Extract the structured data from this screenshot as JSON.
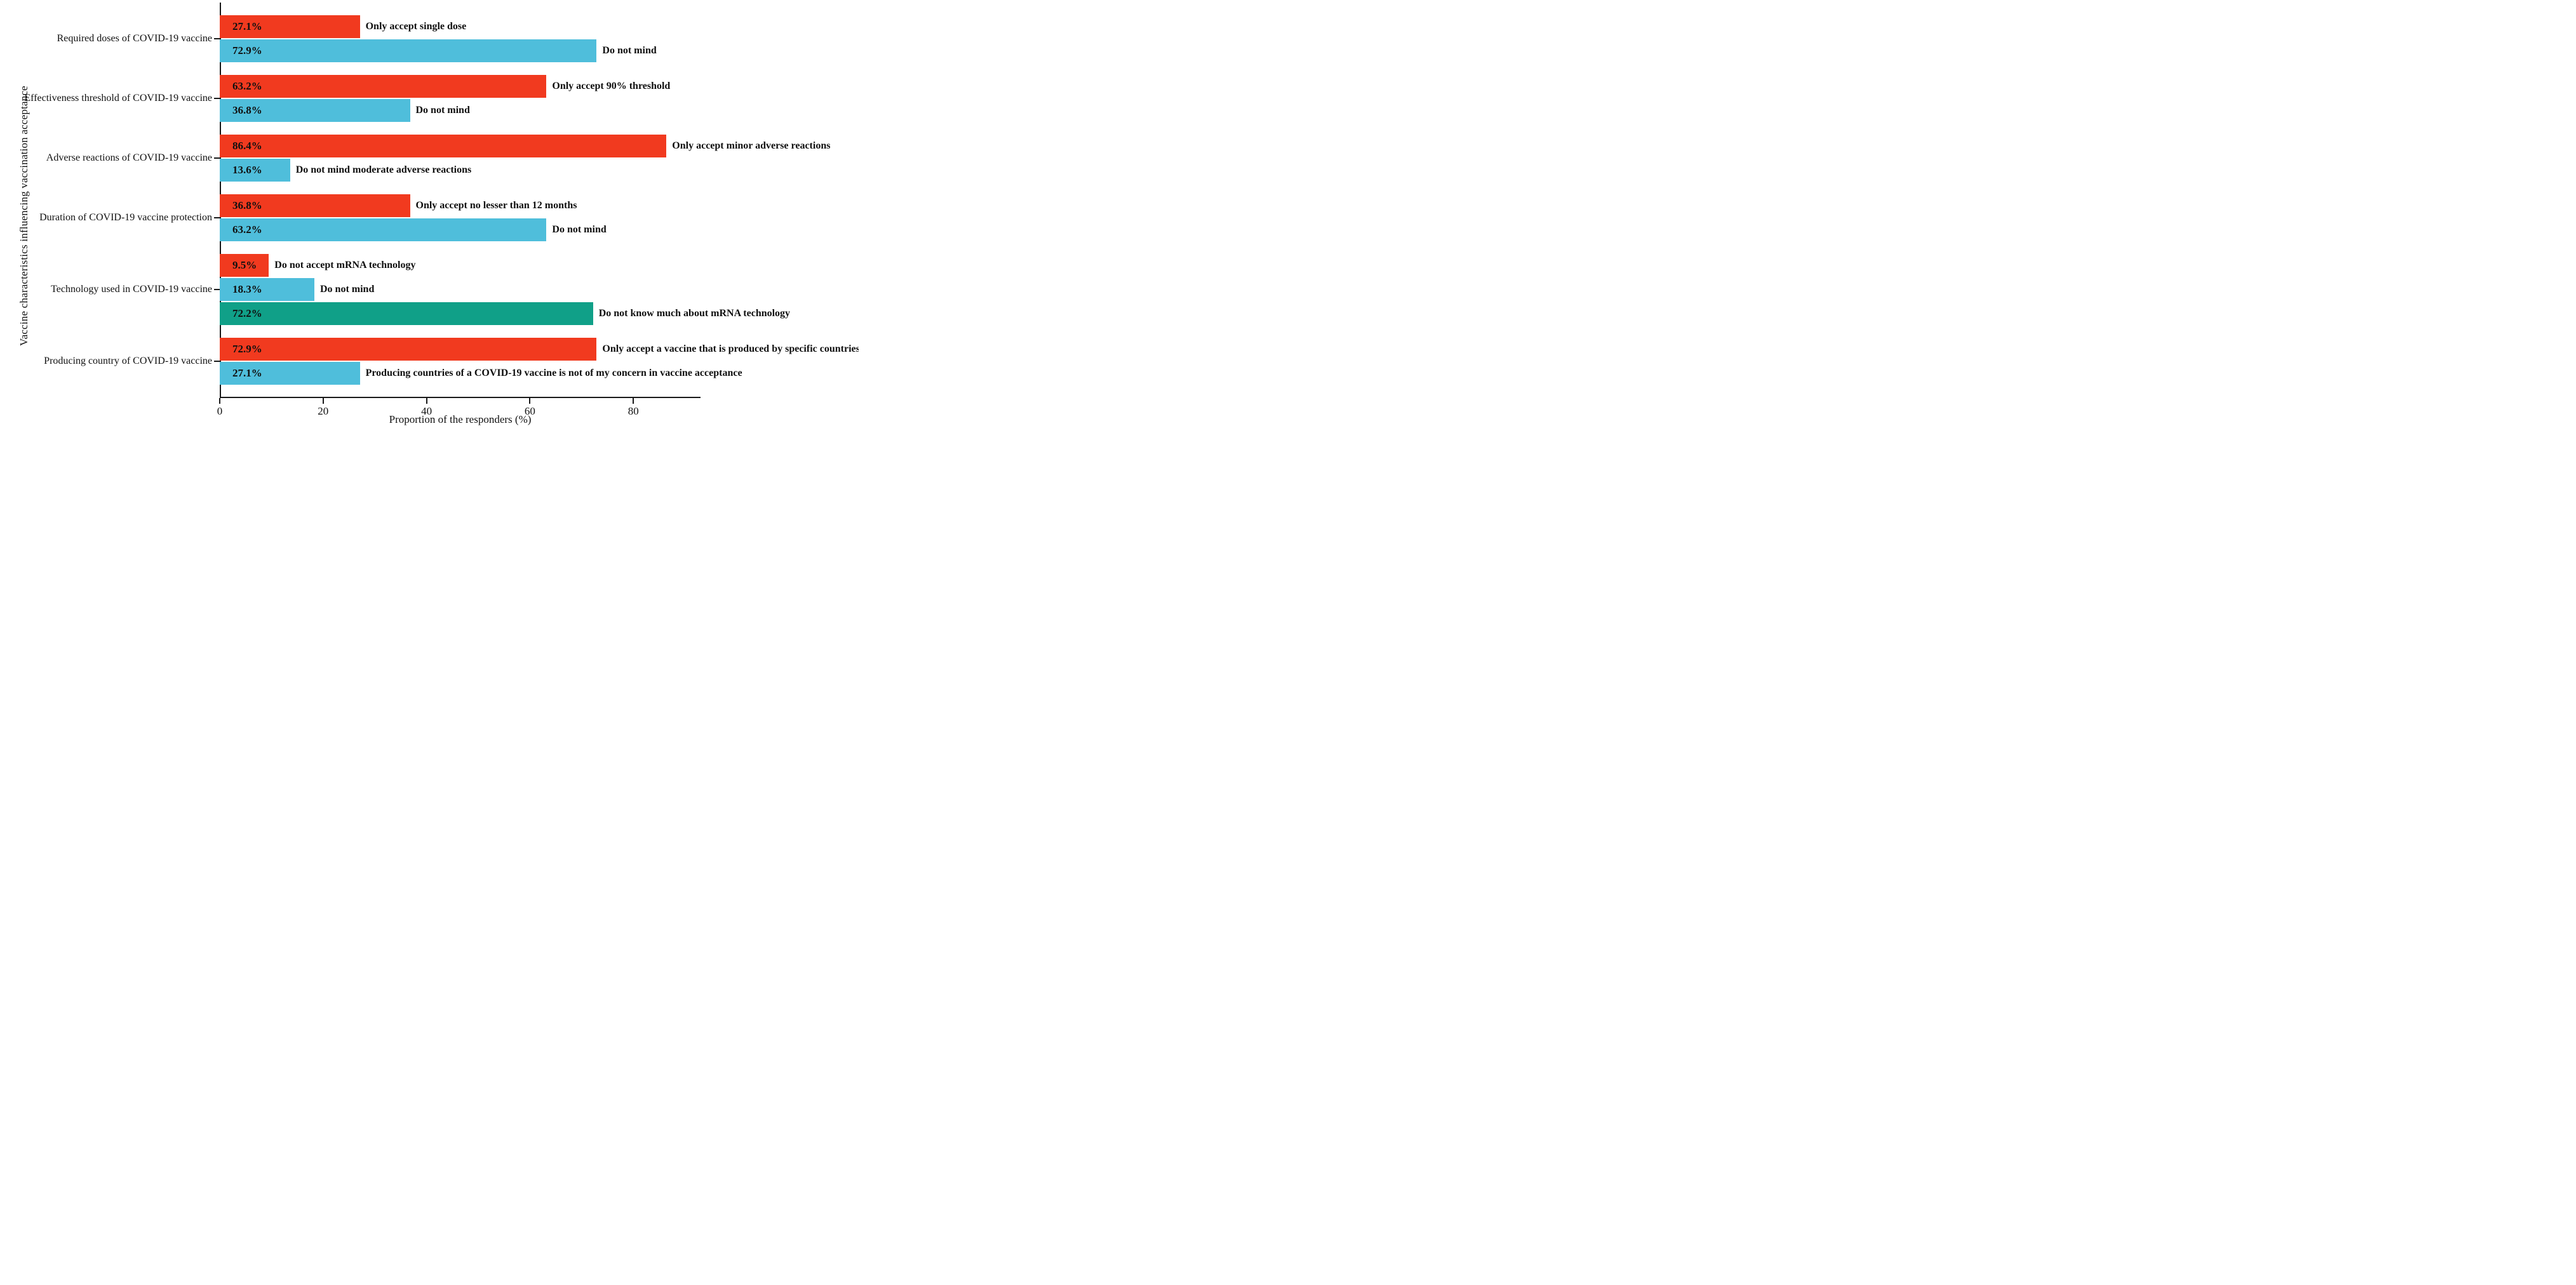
{
  "page": {
    "background": "#ffffff"
  },
  "chart_data": {
    "type": "bar",
    "orientation": "horizontal",
    "title": "",
    "xlabel": "Proportion of the responders (%)",
    "ylabel": "Vaccine characteristics influencing vaccination acceptance",
    "xlim": [
      0,
      93
    ],
    "xticks": [
      "0",
      "20",
      "40",
      "60",
      "80"
    ],
    "grid": false,
    "legend_position": "none",
    "colors": {
      "red": "#F13A1F",
      "cyan": "#4FBEDB",
      "teal": "#10A088",
      "axis": "#1a1a1a"
    },
    "groups": [
      {
        "category": "Required doses of COVID-19 vaccine",
        "bars": [
          {
            "value": 27.1,
            "value_label": "27.1%",
            "label": "Only accept single dose",
            "color": "red"
          },
          {
            "value": 72.9,
            "value_label": "72.9%",
            "label": "Do not mind",
            "color": "cyan"
          }
        ]
      },
      {
        "category": "Effectiveness threshold of COVID-19 vaccine",
        "bars": [
          {
            "value": 63.2,
            "value_label": "63.2%",
            "label": "Only accept 90% threshold",
            "color": "red"
          },
          {
            "value": 36.8,
            "value_label": "36.8%",
            "label": "Do not mind",
            "color": "cyan"
          }
        ]
      },
      {
        "category": "Adverse reactions of COVID-19 vaccine",
        "bars": [
          {
            "value": 86.4,
            "value_label": "86.4%",
            "label": "Only accept minor adverse reactions",
            "color": "red"
          },
          {
            "value": 13.6,
            "value_label": "13.6%",
            "label": "Do not mind moderate adverse reactions",
            "color": "cyan"
          }
        ]
      },
      {
        "category": "Duration of COVID-19 vaccine protection",
        "bars": [
          {
            "value": 36.8,
            "value_label": "36.8%",
            "label": "Only accept no lesser than 12 months",
            "color": "red"
          },
          {
            "value": 63.2,
            "value_label": "63.2%",
            "label": "Do not mind",
            "color": "cyan"
          }
        ]
      },
      {
        "category": "Technology used in COVID-19 vaccine",
        "bars": [
          {
            "value": 9.5,
            "value_label": "9.5%",
            "label": "Do not accept mRNA technology",
            "color": "red"
          },
          {
            "value": 18.3,
            "value_label": "18.3%",
            "label": "Do not mind",
            "color": "cyan"
          },
          {
            "value": 72.2,
            "value_label": "72.2%",
            "label": "Do not know much about mRNA technology",
            "color": "teal"
          }
        ]
      },
      {
        "category": "Producing country of COVID-19 vaccine",
        "bars": [
          {
            "value": 72.9,
            "value_label": "72.9%",
            "label": "Only accept a vaccine that is produced by specific countries",
            "color": "red"
          },
          {
            "value": 27.1,
            "value_label": "27.1%",
            "label": "Producing countries of a COVID-19 vaccine is not of my concern in vaccine acceptance",
            "color": "cyan"
          }
        ]
      }
    ]
  }
}
